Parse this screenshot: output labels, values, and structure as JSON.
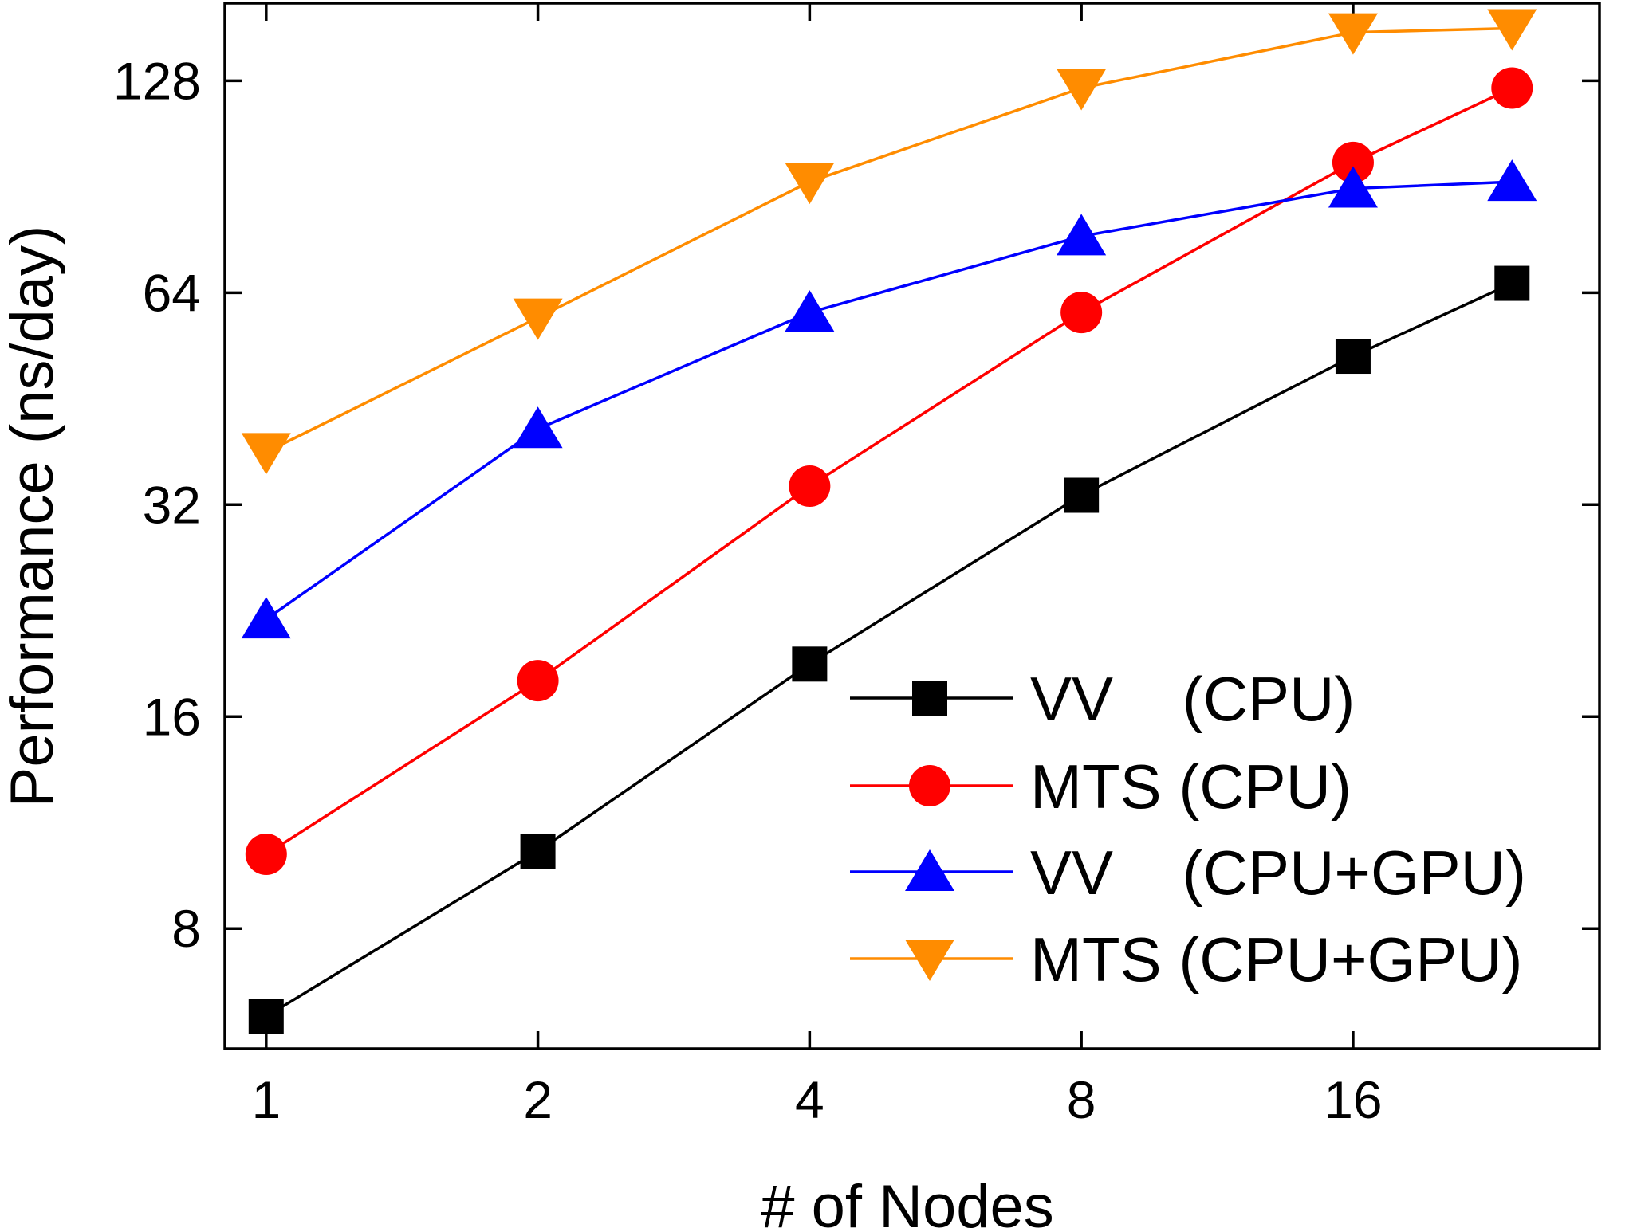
{
  "chart_data": {
    "type": "line",
    "xlabel": "# of Nodes",
    "ylabel": "Performance (ns/day)",
    "x_scale": "log2",
    "y_scale": "log2",
    "xlim": [
      0.9,
      30
    ],
    "ylim": [
      5.4,
      165
    ],
    "x_ticks": [
      1,
      2,
      4,
      8,
      16
    ],
    "x_tick_labels": [
      "1",
      "2",
      "4",
      "8",
      "16"
    ],
    "y_ticks": [
      8,
      16,
      32,
      64,
      128
    ],
    "y_tick_labels": [
      "8",
      "16",
      "32",
      "64",
      "128"
    ],
    "x": [
      1,
      2,
      4,
      8,
      16,
      24
    ],
    "grid": false,
    "legend_position": "bottom-right",
    "series": [
      {
        "name": "VV    (CPU)",
        "marker": "square",
        "color": "#000000",
        "values": [
          6.0,
          10.3,
          19.0,
          33.0,
          52.0,
          66.0
        ]
      },
      {
        "name": "MTS (CPU)",
        "marker": "circle",
        "color": "#ff0000",
        "values": [
          10.2,
          18.0,
          34.0,
          60.0,
          98.0,
          125.0
        ]
      },
      {
        "name": "VV    (CPU+GPU)",
        "marker": "triangle-up",
        "color": "#0000ff",
        "values": [
          22.0,
          41.0,
          60.0,
          77.0,
          90.0,
          92.0
        ]
      },
      {
        "name": "MTS (CPU+GPU)",
        "marker": "triangle-down",
        "color": "#ff8c00",
        "values": [
          38.0,
          59.0,
          92.0,
          125.0,
          150.0,
          152.0
        ]
      }
    ]
  }
}
